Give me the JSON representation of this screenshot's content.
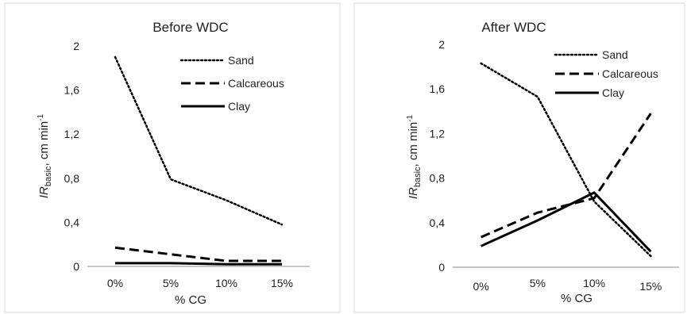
{
  "chart_data": [
    {
      "type": "line",
      "title": "Before WDC",
      "xlabel": "% CG",
      "ylabel_main": "IR",
      "ylabel_sub": "basic",
      "ylabel_unit": ", cm min",
      "ylabel_sup": "-1",
      "categories": [
        "0%",
        "5%",
        "10%",
        "15%"
      ],
      "ylim": [
        0,
        2
      ],
      "yticks": [
        "0",
        "0,4",
        "0,8",
        "1,2",
        "1,6",
        "2"
      ],
      "grid": false,
      "legend_position": "top-right",
      "series": [
        {
          "name": "Sand",
          "style": "dotted",
          "values": [
            1.9,
            0.79,
            0.6,
            0.38
          ]
        },
        {
          "name": "Calcareous",
          "style": "dashed",
          "values": [
            0.17,
            0.11,
            0.05,
            0.05
          ]
        },
        {
          "name": "Clay",
          "style": "solid",
          "values": [
            0.03,
            0.03,
            0.02,
            0.02
          ]
        }
      ]
    },
    {
      "type": "line",
      "title": "After WDC",
      "xlabel": "% CG",
      "ylabel_main": "IR",
      "ylabel_sub": "basic",
      "ylabel_unit": ", cm min",
      "ylabel_sup": "-1",
      "categories": [
        "0%",
        "5%",
        "10%",
        "15%"
      ],
      "ylim": [
        0,
        2
      ],
      "yticks": [
        "0",
        "0,4",
        "0,8",
        "1,2",
        "1,6",
        "2"
      ],
      "grid": false,
      "legend_position": "top-right",
      "series": [
        {
          "name": "Sand",
          "style": "dotted",
          "values": [
            1.83,
            1.53,
            0.59,
            0.1
          ]
        },
        {
          "name": "Calcareous",
          "style": "dashed",
          "values": [
            0.27,
            0.49,
            0.62,
            1.38
          ]
        },
        {
          "name": "Clay",
          "style": "solid",
          "values": [
            0.19,
            0.42,
            0.67,
            0.14
          ]
        }
      ]
    }
  ],
  "colors": {
    "line": "#000000",
    "text": "#222222",
    "axis": "#888888",
    "frame": "#d9d9d9"
  }
}
